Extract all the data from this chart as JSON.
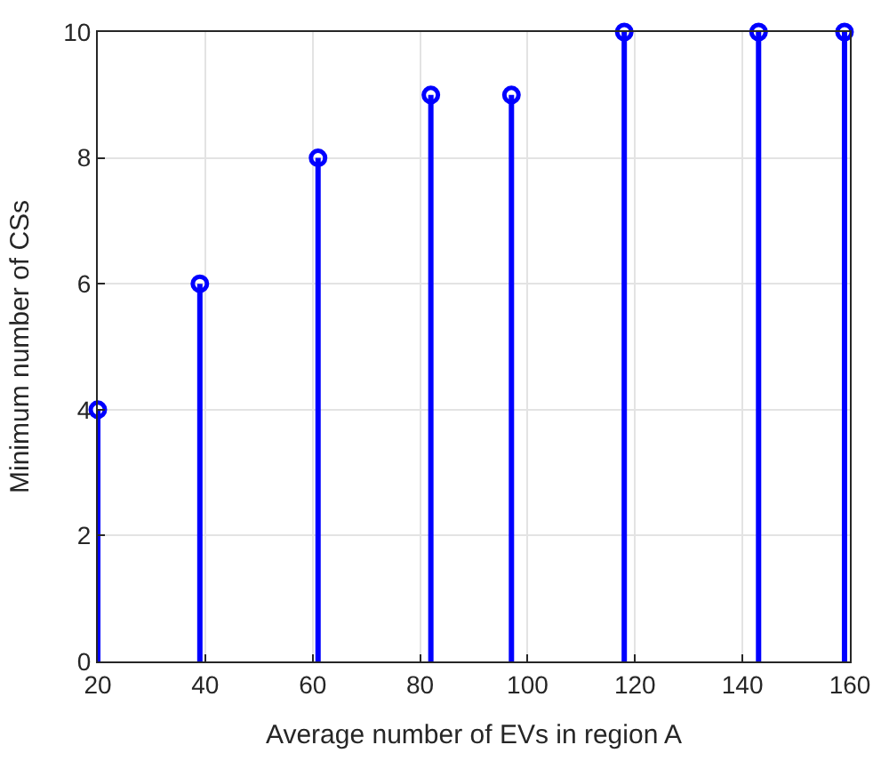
{
  "chart_data": {
    "type": "lollipop",
    "xlabel": "Average number of EVs in region A",
    "ylabel": "Minimum number of CSs",
    "x": [
      20,
      39,
      61,
      82,
      97,
      118,
      143,
      159
    ],
    "series": [
      {
        "color": "#0000ff",
        "values": [
          4,
          6,
          8,
          9,
          9,
          10,
          10,
          10
        ]
      }
    ],
    "xlim": [
      20,
      160
    ],
    "xticks": [
      20,
      40,
      60,
      80,
      100,
      120,
      140,
      160
    ],
    "ylim": [
      0,
      10
    ],
    "yticks": [
      0,
      2,
      4,
      6,
      8,
      10
    ],
    "grid": true,
    "marker": "circle"
  }
}
